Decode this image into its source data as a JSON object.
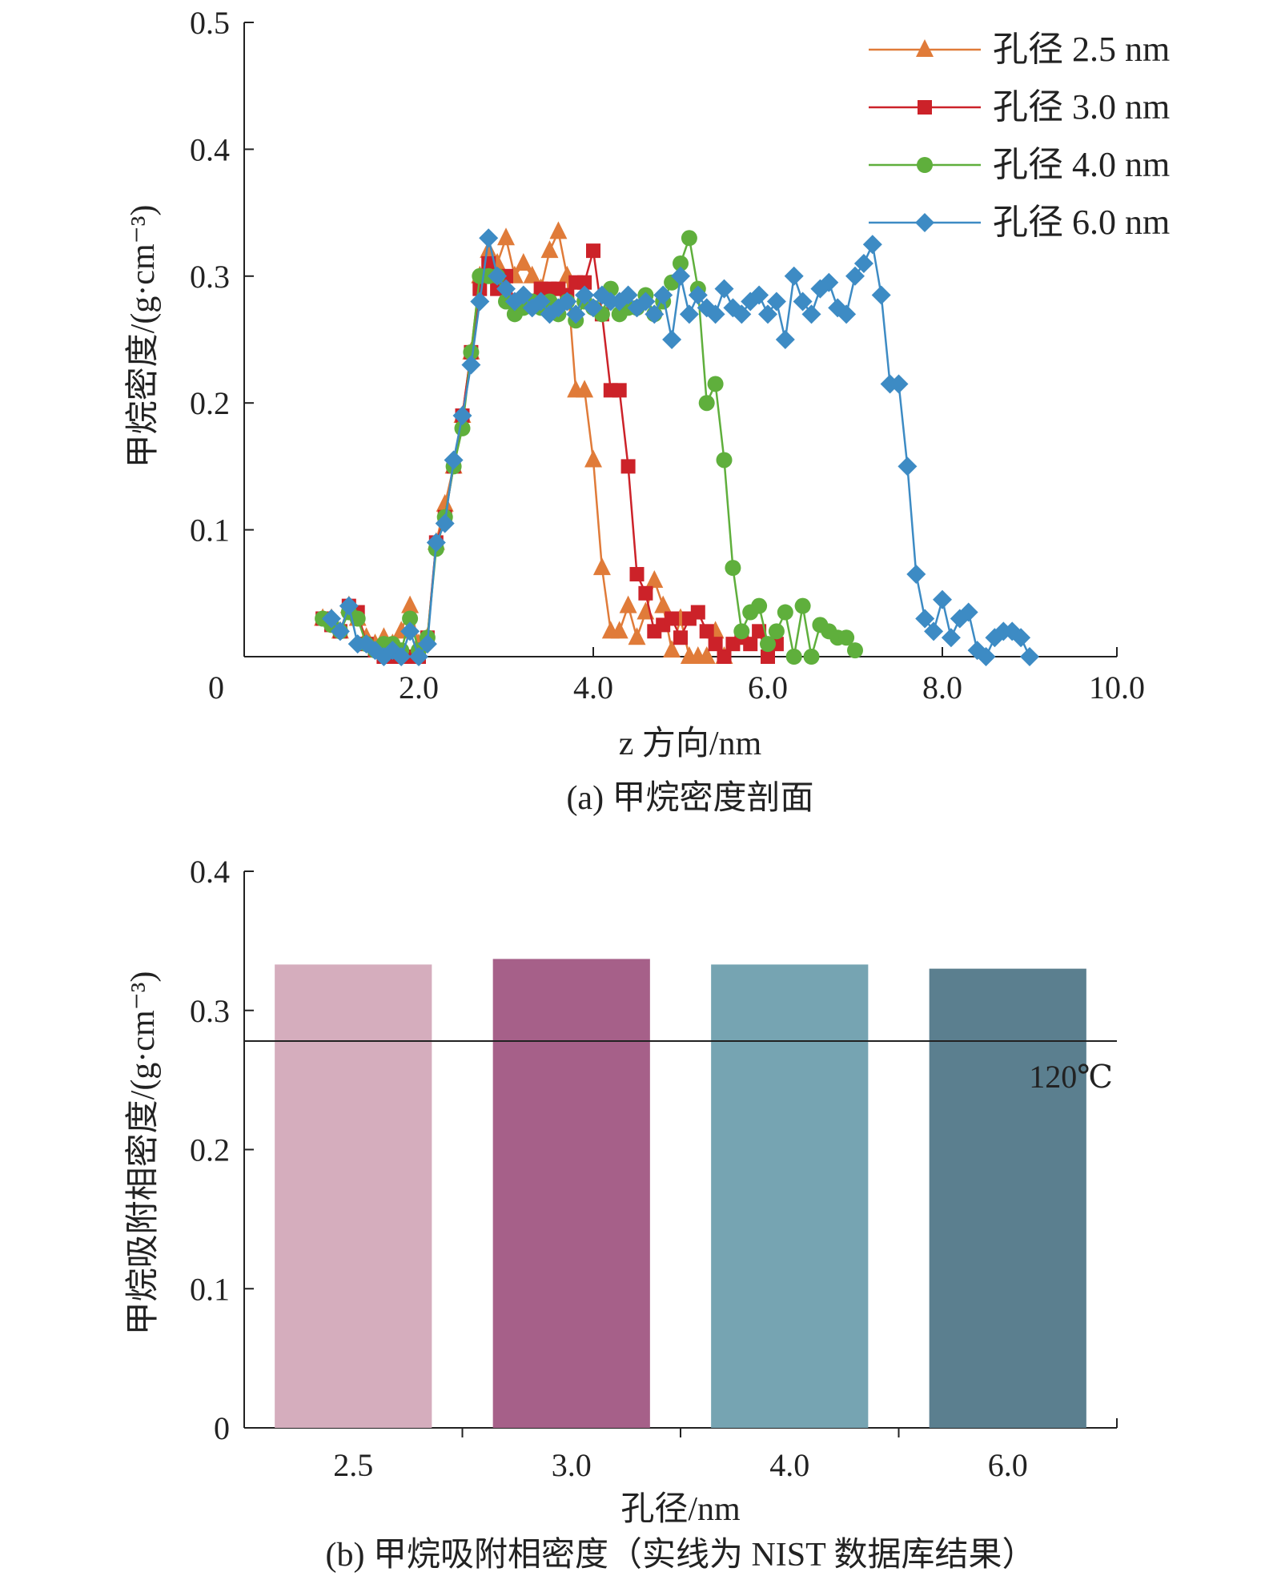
{
  "chart_data": [
    {
      "type": "line",
      "caption": "(a) 甲烷密度剖面",
      "xlabel": "z 方向/nm",
      "ylabel": "甲烷密度/(g·cm⁻³)",
      "xlim": [
        0,
        10
      ],
      "ylim": [
        0,
        0.5
      ],
      "xticks": [
        "0",
        "2.0",
        "4.0",
        "6.0",
        "8.0",
        "10.0"
      ],
      "yticks": [
        "0.1",
        "0.2",
        "0.3",
        "0.4",
        "0.5"
      ],
      "legend_position": "top-right",
      "series": [
        {
          "name": "孔径 2.5 nm",
          "color": "#e07b39",
          "marker": "triangle",
          "x": [
            0.9,
            1.0,
            1.1,
            1.2,
            1.3,
            1.4,
            1.5,
            1.6,
            1.7,
            1.8,
            1.9,
            2.0,
            2.1,
            2.2,
            2.3,
            2.4,
            2.5,
            2.6,
            2.7,
            2.8,
            2.9,
            3.0,
            3.1,
            3.2,
            3.3,
            3.4,
            3.5,
            3.6,
            3.7,
            3.8,
            3.9,
            4.0,
            4.1,
            4.2,
            4.3,
            4.4,
            4.5,
            4.6,
            4.7,
            4.8,
            4.9,
            5.0,
            5.1,
            5.2,
            5.3,
            5.4,
            5.5
          ],
          "y": [
            0.03,
            0.03,
            0.02,
            0.04,
            0.03,
            0.015,
            0.01,
            0.015,
            0.01,
            0.02,
            0.04,
            0.01,
            0.015,
            0.09,
            0.12,
            0.15,
            0.19,
            0.24,
            0.3,
            0.32,
            0.31,
            0.33,
            0.3,
            0.31,
            0.3,
            0.29,
            0.32,
            0.335,
            0.3,
            0.21,
            0.21,
            0.155,
            0.07,
            0.02,
            0.02,
            0.04,
            0.015,
            0.035,
            0.06,
            0.04,
            0.005,
            0.03,
            0.0,
            0.0,
            0.0,
            0.02,
            0.0
          ]
        },
        {
          "name": "孔径 3.0 nm",
          "color": "#cc2229",
          "marker": "square",
          "x": [
            0.9,
            1.0,
            1.1,
            1.2,
            1.3,
            1.4,
            1.5,
            1.6,
            1.7,
            1.8,
            1.9,
            2.0,
            2.1,
            2.2,
            2.3,
            2.4,
            2.5,
            2.6,
            2.7,
            2.8,
            2.9,
            3.0,
            3.1,
            3.2,
            3.3,
            3.4,
            3.5,
            3.6,
            3.7,
            3.8,
            3.9,
            4.0,
            4.1,
            4.2,
            4.3,
            4.4,
            4.5,
            4.6,
            4.7,
            4.8,
            4.9,
            5.0,
            5.1,
            5.2,
            5.3,
            5.4,
            5.5,
            5.6,
            5.7,
            5.8,
            5.9,
            6.0,
            6.1
          ],
          "y": [
            0.03,
            0.025,
            0.02,
            0.04,
            0.035,
            0.01,
            0.005,
            0.0,
            0.0,
            0.0,
            0.0,
            0.0,
            0.015,
            0.09,
            0.11,
            0.15,
            0.19,
            0.24,
            0.29,
            0.31,
            0.29,
            0.3,
            0.28,
            0.28,
            0.28,
            0.29,
            0.29,
            0.29,
            0.285,
            0.295,
            0.295,
            0.32,
            0.27,
            0.21,
            0.21,
            0.15,
            0.065,
            0.05,
            0.02,
            0.025,
            0.03,
            0.015,
            0.03,
            0.035,
            0.02,
            0.01,
            0.0,
            0.01,
            0.015,
            0.01,
            0.02,
            0.0,
            0.01
          ]
        },
        {
          "name": "孔径 4.0 nm",
          "color": "#5faf3c",
          "marker": "circle",
          "x": [
            0.9,
            1.0,
            1.1,
            1.2,
            1.3,
            1.4,
            1.5,
            1.6,
            1.7,
            1.8,
            1.9,
            2.0,
            2.1,
            2.2,
            2.3,
            2.4,
            2.5,
            2.6,
            2.7,
            2.8,
            2.9,
            3.0,
            3.1,
            3.2,
            3.3,
            3.4,
            3.5,
            3.6,
            3.7,
            3.8,
            3.9,
            4.0,
            4.1,
            4.2,
            4.3,
            4.4,
            4.5,
            4.6,
            4.7,
            4.8,
            4.9,
            5.0,
            5.1,
            5.2,
            5.3,
            5.4,
            5.5,
            5.6,
            5.7,
            5.8,
            5.9,
            6.0,
            6.1,
            6.2,
            6.3,
            6.4,
            6.5,
            6.6,
            6.7,
            6.8,
            6.9,
            7.0
          ],
          "y": [
            0.03,
            0.025,
            0.02,
            0.035,
            0.03,
            0.01,
            0.005,
            0.01,
            0.01,
            0.005,
            0.03,
            0.005,
            0.015,
            0.085,
            0.11,
            0.15,
            0.18,
            0.24,
            0.3,
            0.3,
            0.3,
            0.28,
            0.27,
            0.275,
            0.28,
            0.275,
            0.28,
            0.27,
            0.28,
            0.265,
            0.28,
            0.275,
            0.27,
            0.29,
            0.27,
            0.275,
            0.275,
            0.285,
            0.27,
            0.28,
            0.295,
            0.31,
            0.33,
            0.29,
            0.2,
            0.215,
            0.155,
            0.07,
            0.02,
            0.035,
            0.04,
            0.01,
            0.02,
            0.035,
            0.0,
            0.04,
            0.0,
            0.025,
            0.02,
            0.015,
            0.015,
            0.005
          ]
        },
        {
          "name": "孔径 6.0 nm",
          "color": "#3d8bc4",
          "marker": "diamond",
          "x": [
            1.0,
            1.1,
            1.2,
            1.3,
            1.4,
            1.5,
            1.6,
            1.7,
            1.8,
            1.9,
            2.0,
            2.1,
            2.2,
            2.3,
            2.4,
            2.5,
            2.6,
            2.7,
            2.8,
            2.9,
            3.0,
            3.1,
            3.2,
            3.3,
            3.4,
            3.5,
            3.6,
            3.7,
            3.8,
            3.9,
            4.0,
            4.1,
            4.2,
            4.3,
            4.4,
            4.5,
            4.6,
            4.7,
            4.8,
            4.9,
            5.0,
            5.1,
            5.2,
            5.3,
            5.4,
            5.5,
            5.6,
            5.7,
            5.8,
            5.9,
            6.0,
            6.1,
            6.2,
            6.3,
            6.4,
            6.5,
            6.6,
            6.7,
            6.8,
            6.9,
            7.0,
            7.1,
            7.2,
            7.3,
            7.4,
            7.5,
            7.6,
            7.7,
            7.8,
            7.9,
            8.0,
            8.1,
            8.2,
            8.3,
            8.4,
            8.5,
            8.6,
            8.7,
            8.8,
            8.9,
            9.0
          ],
          "y": [
            0.03,
            0.02,
            0.04,
            0.01,
            0.01,
            0.005,
            0.0,
            0.005,
            0.0,
            0.02,
            0.0,
            0.01,
            0.09,
            0.105,
            0.155,
            0.19,
            0.23,
            0.28,
            0.33,
            0.3,
            0.29,
            0.28,
            0.285,
            0.275,
            0.28,
            0.27,
            0.275,
            0.28,
            0.27,
            0.285,
            0.275,
            0.285,
            0.28,
            0.28,
            0.285,
            0.275,
            0.28,
            0.27,
            0.285,
            0.25,
            0.3,
            0.27,
            0.285,
            0.275,
            0.27,
            0.29,
            0.275,
            0.27,
            0.28,
            0.285,
            0.27,
            0.28,
            0.25,
            0.3,
            0.28,
            0.27,
            0.29,
            0.295,
            0.275,
            0.27,
            0.3,
            0.31,
            0.325,
            0.285,
            0.215,
            0.215,
            0.15,
            0.065,
            0.03,
            0.02,
            0.045,
            0.015,
            0.03,
            0.035,
            0.005,
            0.0,
            0.015,
            0.02,
            0.02,
            0.015,
            0.0
          ]
        }
      ]
    },
    {
      "type": "bar",
      "caption": "(b) 甲烷吸附相密度（实线为 NIST 数据库结果）",
      "xlabel": "孔径/nm",
      "ylabel": "甲烷吸附相密度/(g·cm⁻³)",
      "ylim": [
        0,
        0.4
      ],
      "yticks": [
        "0",
        "0.1",
        "0.2",
        "0.3",
        "0.4"
      ],
      "categories": [
        "2.5",
        "3.0",
        "4.0",
        "6.0"
      ],
      "values": [
        0.333,
        0.337,
        0.333,
        0.33
      ],
      "colors": [
        "#d5adbd",
        "#a66089",
        "#76a4b2",
        "#5b7f8f"
      ],
      "reference_line": {
        "value": 0.278,
        "label": "120℃",
        "color": "#222222"
      }
    }
  ]
}
